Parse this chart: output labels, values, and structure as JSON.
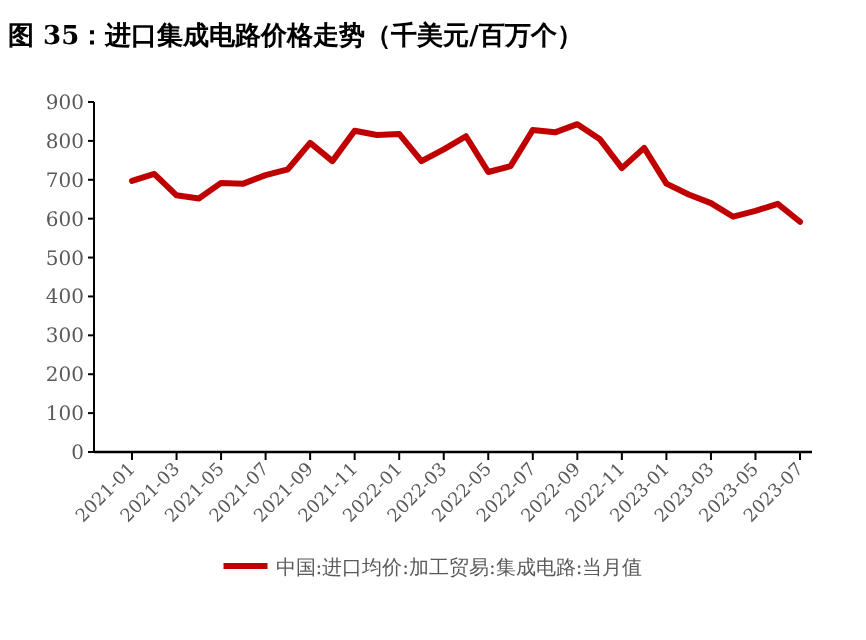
{
  "chart_data": {
    "type": "line",
    "title": "图 35：进口集成电路价格走势（千美元/百万个）",
    "categories": [
      "2021-01",
      null,
      "2021-03",
      null,
      "2021-05",
      null,
      "2021-07",
      null,
      "2021-09",
      null,
      "2021-11",
      null,
      "2022-01",
      null,
      "2022-03",
      null,
      "2022-05",
      null,
      "2022-07",
      null,
      "2022-09",
      null,
      "2022-11",
      null,
      "2023-01",
      null,
      "2023-03",
      null,
      "2023-05",
      null,
      "2023-07"
    ],
    "series": [
      {
        "name": "中国:进口均价:加工贸易:集成电路:当月值",
        "color": "#c00000",
        "values": [
          697,
          715,
          660,
          652,
          692,
          690,
          712,
          727,
          795,
          748,
          826,
          815,
          818,
          748,
          778,
          812,
          720,
          735,
          828,
          822,
          843,
          805,
          730,
          782,
          690,
          662,
          640,
          605,
          620,
          638,
          592
        ]
      }
    ],
    "ylim": [
      0,
      900
    ],
    "yticks": [
      0,
      100,
      200,
      300,
      400,
      500,
      600,
      700,
      800,
      900
    ],
    "grid": false,
    "legend": "bottom",
    "marker": "none",
    "line_style": "solid"
  }
}
